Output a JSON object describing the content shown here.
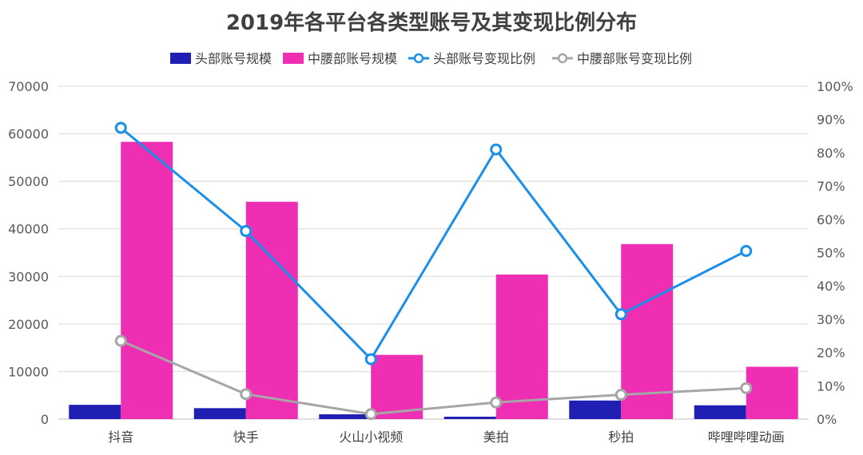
{
  "chart_data": {
    "type": "bar",
    "title": "2019年各平台各类型账号及其变现比例分布",
    "categories": [
      "抖音",
      "快手",
      "火山小视频",
      "美拍",
      "秒拍",
      "哔哩哔哩动画"
    ],
    "bar_series": [
      {
        "name": "头部账号规模",
        "color": "#1f1fb4",
        "values": [
          3000,
          2300,
          1000,
          500,
          3900,
          2900
        ]
      },
      {
        "name": "中腰部账号规模",
        "color": "#ee2fb3",
        "values": [
          58300,
          45700,
          13500,
          30400,
          36800,
          11000
        ]
      }
    ],
    "line_series": [
      {
        "name": "头部账号变现比例",
        "color": "#1a8fea",
        "values": [
          0.875,
          0.565,
          0.18,
          0.81,
          0.315,
          0.505
        ]
      },
      {
        "name": "中腰部账号变现比例",
        "color": "#a6a6a6",
        "values": [
          0.235,
          0.075,
          0.015,
          0.05,
          0.073,
          0.093
        ]
      }
    ],
    "left_axis": {
      "min": 0,
      "max": 70000,
      "step": 10000,
      "ticks": [
        "0",
        "10000",
        "20000",
        "30000",
        "40000",
        "50000",
        "60000",
        "70000"
      ]
    },
    "right_axis": {
      "min": 0,
      "max": 1,
      "step": 0.1,
      "ticks": [
        "0%",
        "10%",
        "20%",
        "30%",
        "40%",
        "50%",
        "60%",
        "70%",
        "80%",
        "90%",
        "100%"
      ]
    },
    "grid": true,
    "legend_position": "top"
  }
}
